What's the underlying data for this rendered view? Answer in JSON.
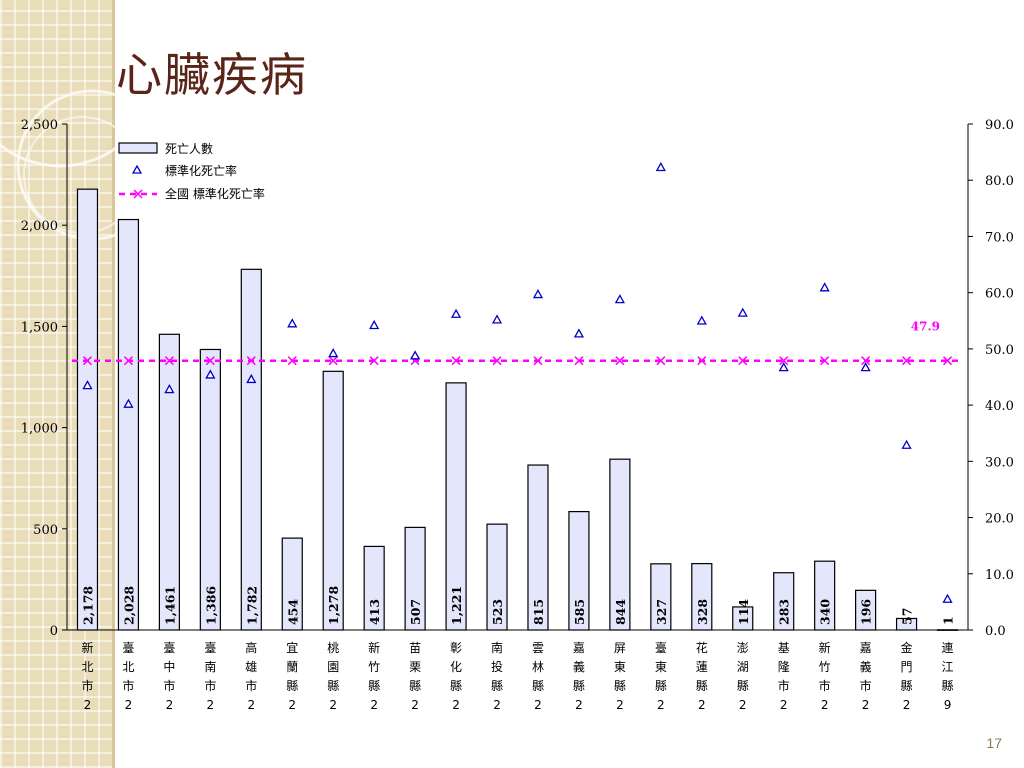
{
  "slide": {
    "title": "心臟疾病",
    "page_number": "17"
  },
  "colors": {
    "bar_fill": "#e4e6fb",
    "bar_stroke": "#000000",
    "triangle": "#0000cc",
    "national": "#ff00ff",
    "title": "#5a2419"
  },
  "chart_data": {
    "type": "bar",
    "categories": [
      [
        "新",
        "北",
        "市",
        "2"
      ],
      [
        "臺",
        "北",
        "市",
        "2"
      ],
      [
        "臺",
        "中",
        "市",
        "2"
      ],
      [
        "臺",
        "南",
        "市",
        "2"
      ],
      [
        "高",
        "雄",
        "市",
        "2"
      ],
      [
        "宜",
        "蘭",
        "縣",
        "2"
      ],
      [
        "桃",
        "園",
        "縣",
        "2"
      ],
      [
        "新",
        "竹",
        "縣",
        "2"
      ],
      [
        "苗",
        "栗",
        "縣",
        "2"
      ],
      [
        "彰",
        "化",
        "縣",
        "2"
      ],
      [
        "南",
        "投",
        "縣",
        "2"
      ],
      [
        "雲",
        "林",
        "縣",
        "2"
      ],
      [
        "嘉",
        "義",
        "縣",
        "2"
      ],
      [
        "屏",
        "東",
        "縣",
        "2"
      ],
      [
        "臺",
        "東",
        "縣",
        "2"
      ],
      [
        "花",
        "蓮",
        "縣",
        "2"
      ],
      [
        "澎",
        "湖",
        "縣",
        "2"
      ],
      [
        "基",
        "隆",
        "市",
        "2"
      ],
      [
        "新",
        "竹",
        "市",
        "2"
      ],
      [
        "嘉",
        "義",
        "市",
        "2"
      ],
      [
        "金",
        "門",
        "縣",
        "2"
      ],
      [
        "連",
        "江",
        "縣",
        "9"
      ]
    ],
    "series": [
      {
        "name": "死亡人數",
        "type": "bar",
        "axis": "left",
        "values": [
          2178,
          2028,
          1461,
          1386,
          1782,
          454,
          1278,
          413,
          507,
          1221,
          523,
          815,
          585,
          844,
          327,
          328,
          114,
          283,
          340,
          196,
          57,
          1
        ],
        "labels": [
          "2,178",
          "2,028",
          "1,461",
          "1,386",
          "1,782",
          "454",
          "1,278",
          "413",
          "507",
          "1,221",
          "523",
          "815",
          "585",
          "844",
          "327",
          "328",
          "114",
          "283",
          "340",
          "196",
          "57",
          "1"
        ]
      },
      {
        "name": "標準化死亡率",
        "type": "scatter",
        "marker": "triangle",
        "axis": "right",
        "values": [
          43.5,
          40.2,
          42.8,
          45.4,
          44.6,
          54.5,
          49.2,
          54.2,
          48.8,
          56.2,
          55.2,
          59.7,
          52.7,
          58.8,
          82.3,
          55.0,
          56.4,
          46.7,
          60.9,
          46.7,
          32.9,
          5.5
        ]
      },
      {
        "name": "全國 標準化死亡率",
        "type": "line",
        "marker": "x",
        "axis": "right",
        "value": 47.9,
        "value_label": "47.9"
      }
    ],
    "y_left": {
      "min": 0,
      "max": 2500,
      "ticks": [
        0,
        500,
        1000,
        1500,
        2000,
        2500
      ],
      "tick_labels": [
        "0",
        "500",
        "1,000",
        "1,500",
        "2,000",
        "2,500"
      ]
    },
    "y_right": {
      "min": 0,
      "max": 90,
      "ticks": [
        0,
        10,
        20,
        30,
        40,
        50,
        60,
        70,
        80,
        90
      ],
      "tick_labels": [
        "0.0",
        "10.0",
        "20.0",
        "30.0",
        "40.0",
        "50.0",
        "60.0",
        "70.0",
        "80.0",
        "90.0"
      ]
    },
    "legend_position": "top-left",
    "grid": false
  }
}
